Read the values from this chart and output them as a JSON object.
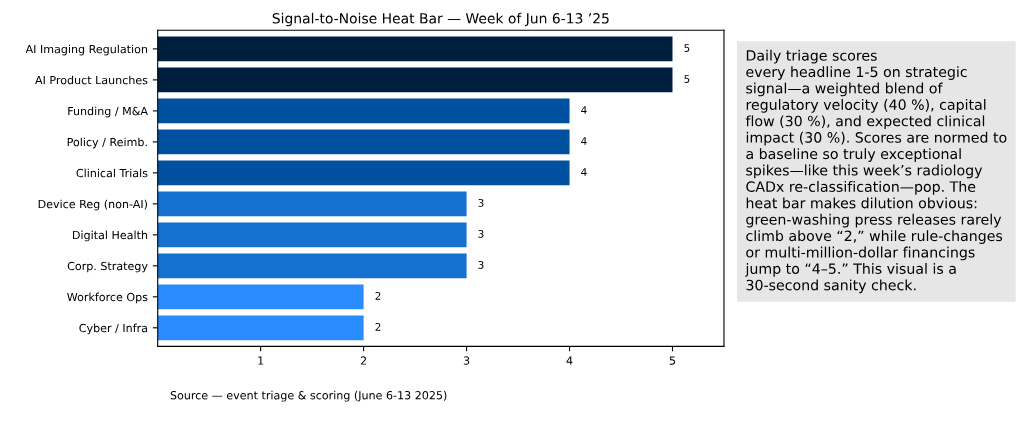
{
  "chart_data": {
    "type": "bar",
    "orientation": "horizontal",
    "title": "Signal-to-Noise Heat Bar — Week of Jun 6-13 ’25",
    "categories": [
      "AI Imaging Regulation",
      "AI Product Launches",
      "Funding / M&A",
      "Policy / Reimb.",
      "Clinical Trials",
      "Device Reg (non-AI)",
      "Digital Health",
      "Corp. Strategy",
      "Workforce Ops",
      "Cyber / Infra"
    ],
    "values": [
      5,
      5,
      4,
      4,
      4,
      3,
      3,
      3,
      2,
      2
    ],
    "colors": [
      "#001f3f",
      "#001f3f",
      "#0050a0",
      "#0050a0",
      "#0050a0",
      "#1570d0",
      "#1570d0",
      "#1570d0",
      "#2a8cff",
      "#2a8cff"
    ],
    "xlim": [
      0,
      5.5
    ],
    "xticks": [
      1,
      2,
      3,
      4,
      5
    ],
    "data_labels": true,
    "grid": false,
    "legend": false,
    "annotations": [
      "Daily triage scores\nevery headline 1-5 on strategic\nsignal—a weighted blend of\nregulatory velocity (40 %), capital\nflow (30 %), and expected clinical\nimpact (30 %). Scores are normed to\na baseline so truly exceptional\nspikes—like this week’s radiology\nCADx re-classification—pop. The\nheat bar makes dilution obvious:\ngreen-washing press releases rarely\nclimb above “2,” while rule-changes\nor multi-million-dollar financings\njump to “4–5.” This visual is a\n30-second sanity check.",
      "Source — event triage & scoring (June 6-13 2025)"
    ]
  }
}
